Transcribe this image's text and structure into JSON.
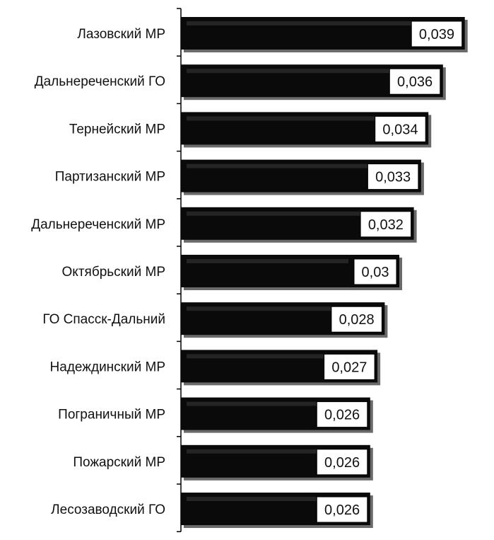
{
  "chart_data": {
    "type": "bar",
    "orientation": "horizontal",
    "title": "",
    "xlabel": "",
    "ylabel": "",
    "categories": [
      "Лазовский МР",
      "Дальнереченский ГО",
      "Тернейский МР",
      "Партизанский МР",
      "Дальнереченский МР",
      "Октябрьский МР",
      "ГО Спасск-Дальний",
      "Надеждинский МР",
      "Пограничный МР",
      "Пожарский МР",
      "Лесозаводский ГО"
    ],
    "values": [
      0.039,
      0.036,
      0.034,
      0.033,
      0.032,
      0.03,
      0.028,
      0.027,
      0.026,
      0.026,
      0.026
    ],
    "value_labels": [
      "0,039",
      "0,036",
      "0,034",
      "0,033",
      "0,032",
      "0,03",
      "0,028",
      "0,027",
      "0,026",
      "0,026",
      "0,026"
    ],
    "xlim": [
      0,
      0.04
    ],
    "grid": false,
    "legend": "none",
    "bar_color": "#0a0a0a",
    "label_box_color": "#ffffff"
  }
}
